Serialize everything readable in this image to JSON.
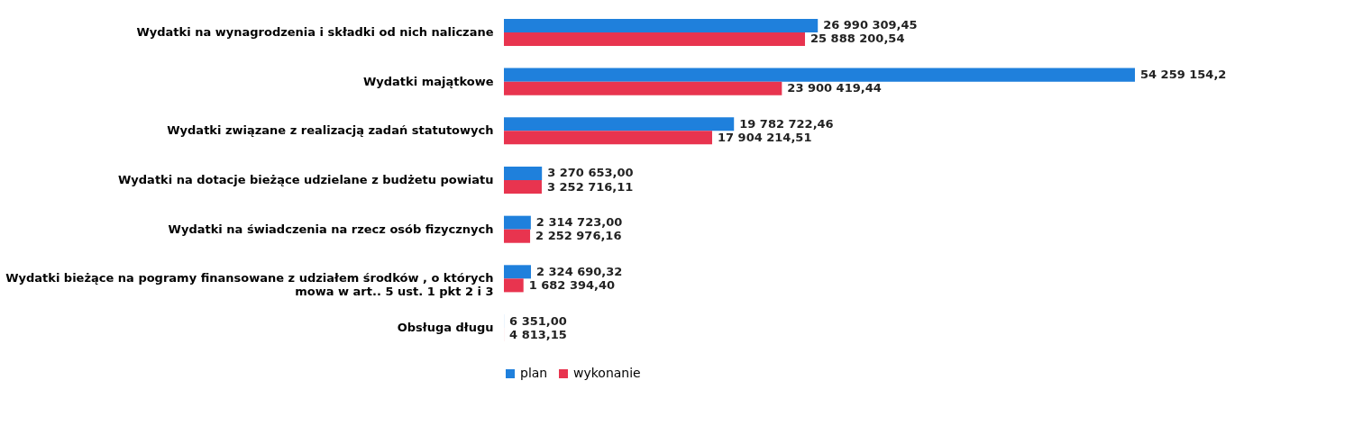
{
  "chart_data": {
    "type": "bar",
    "orientation": "horizontal",
    "legend": "bottom",
    "categories": [
      "Wydatki na wynagrodzenia i składki od nich naliczane",
      "Wydatki majątkowe",
      "Wydatki związane z realizacją zadań statutowych",
      "Wydatki na dotacje bieżące udzielane z budżetu powiatu",
      "Wydatki na świadczenia na rzecz osób fizycznych",
      "Wydatki bieżące na pogramy finansowane z udziałem środków , o których mowa w art.. 5 ust. 1 pkt 2 i 3",
      "Obsługa długu"
    ],
    "series": [
      {
        "name": "plan",
        "color": "#1f80dc",
        "values": [
          26990309.45,
          54259154.2,
          19782722.46,
          3270653.0,
          2314723.0,
          2324690.32,
          6351.0
        ],
        "value_labels": [
          "26 990 309,45",
          "54 259 154,2",
          "19 782 722,46",
          "3 270 653,00",
          "2 314 723,00",
          "2 324 690,32",
          "6 351,00"
        ]
      },
      {
        "name": "wykonanie",
        "color": "#e8344f",
        "values": [
          25888200.54,
          23900419.44,
          17904214.51,
          3252716.11,
          2252976.16,
          1682394.4,
          4813.15
        ],
        "value_labels": [
          "25 888 200,54",
          "23 900 419,44",
          "17 904 214,51",
          "3 252 716,11",
          "2 252 976,16",
          "1 682 394,40",
          "4 813,15"
        ]
      }
    ]
  }
}
